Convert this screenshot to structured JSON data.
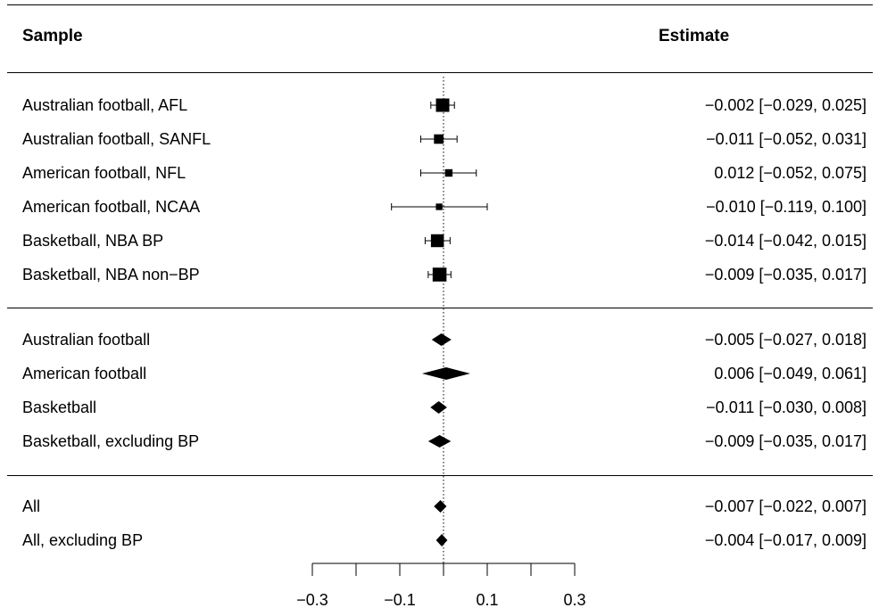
{
  "header": {
    "sample": "Sample",
    "estimate": "Estimate"
  },
  "chart_data": {
    "type": "forest",
    "xlim": [
      -0.3,
      0.3
    ],
    "x_ticks": [
      -0.3,
      -0.2,
      -0.1,
      0.0,
      0.1,
      0.2,
      0.3
    ],
    "x_tick_labels": [
      {
        "value": -0.3,
        "label": "−0.3"
      },
      {
        "value": -0.1,
        "label": "−0.1"
      },
      {
        "value": 0.1,
        "label": "0.1"
      },
      {
        "value": 0.3,
        "label": "0.3"
      }
    ],
    "reference_line": 0.0,
    "groups": [
      {
        "marker": "square",
        "rows": [
          {
            "label": "Australian football, AFL",
            "estimate": -0.002,
            "lower": -0.029,
            "upper": 0.025,
            "text": "−0.002 [−0.029, 0.025]",
            "weight": 1.0
          },
          {
            "label": "Australian football, SANFL",
            "estimate": -0.011,
            "lower": -0.052,
            "upper": 0.031,
            "text": "−0.011 [−0.052, 0.031]",
            "weight": 0.6
          },
          {
            "label": "American football, NFL",
            "estimate": 0.012,
            "lower": -0.052,
            "upper": 0.075,
            "text": "0.012 [−0.052, 0.075]",
            "weight": 0.4
          },
          {
            "label": "American football, NCAA",
            "estimate": -0.01,
            "lower": -0.119,
            "upper": 0.1,
            "text": "−0.010 [−0.119, 0.100]",
            "weight": 0.3
          },
          {
            "label": "Basketball, NBA BP",
            "estimate": -0.014,
            "lower": -0.042,
            "upper": 0.015,
            "text": "−0.014 [−0.042, 0.015]",
            "weight": 0.95
          },
          {
            "label": "Basketball, NBA non−BP",
            "estimate": -0.009,
            "lower": -0.035,
            "upper": 0.017,
            "text": "−0.009 [−0.035, 0.017]",
            "weight": 1.05
          }
        ]
      },
      {
        "marker": "diamond",
        "rows": [
          {
            "label": "Australian football",
            "estimate": -0.005,
            "lower": -0.027,
            "upper": 0.018,
            "text": "−0.005 [−0.027, 0.018]"
          },
          {
            "label": "American football",
            "estimate": 0.006,
            "lower": -0.049,
            "upper": 0.061,
            "text": "0.006 [−0.049, 0.061]"
          },
          {
            "label": "Basketball",
            "estimate": -0.011,
            "lower": -0.03,
            "upper": 0.008,
            "text": "−0.011 [−0.030, 0.008]"
          },
          {
            "label": "Basketball, excluding BP",
            "estimate": -0.009,
            "lower": -0.035,
            "upper": 0.017,
            "text": "−0.009 [−0.035, 0.017]"
          }
        ]
      },
      {
        "marker": "diamond",
        "rows": [
          {
            "label": "All",
            "estimate": -0.007,
            "lower": -0.022,
            "upper": 0.007,
            "text": "−0.007 [−0.022, 0.007]"
          },
          {
            "label": "All, excluding BP",
            "estimate": -0.004,
            "lower": -0.017,
            "upper": 0.009,
            "text": "−0.004 [−0.017, 0.009]"
          }
        ]
      }
    ]
  }
}
